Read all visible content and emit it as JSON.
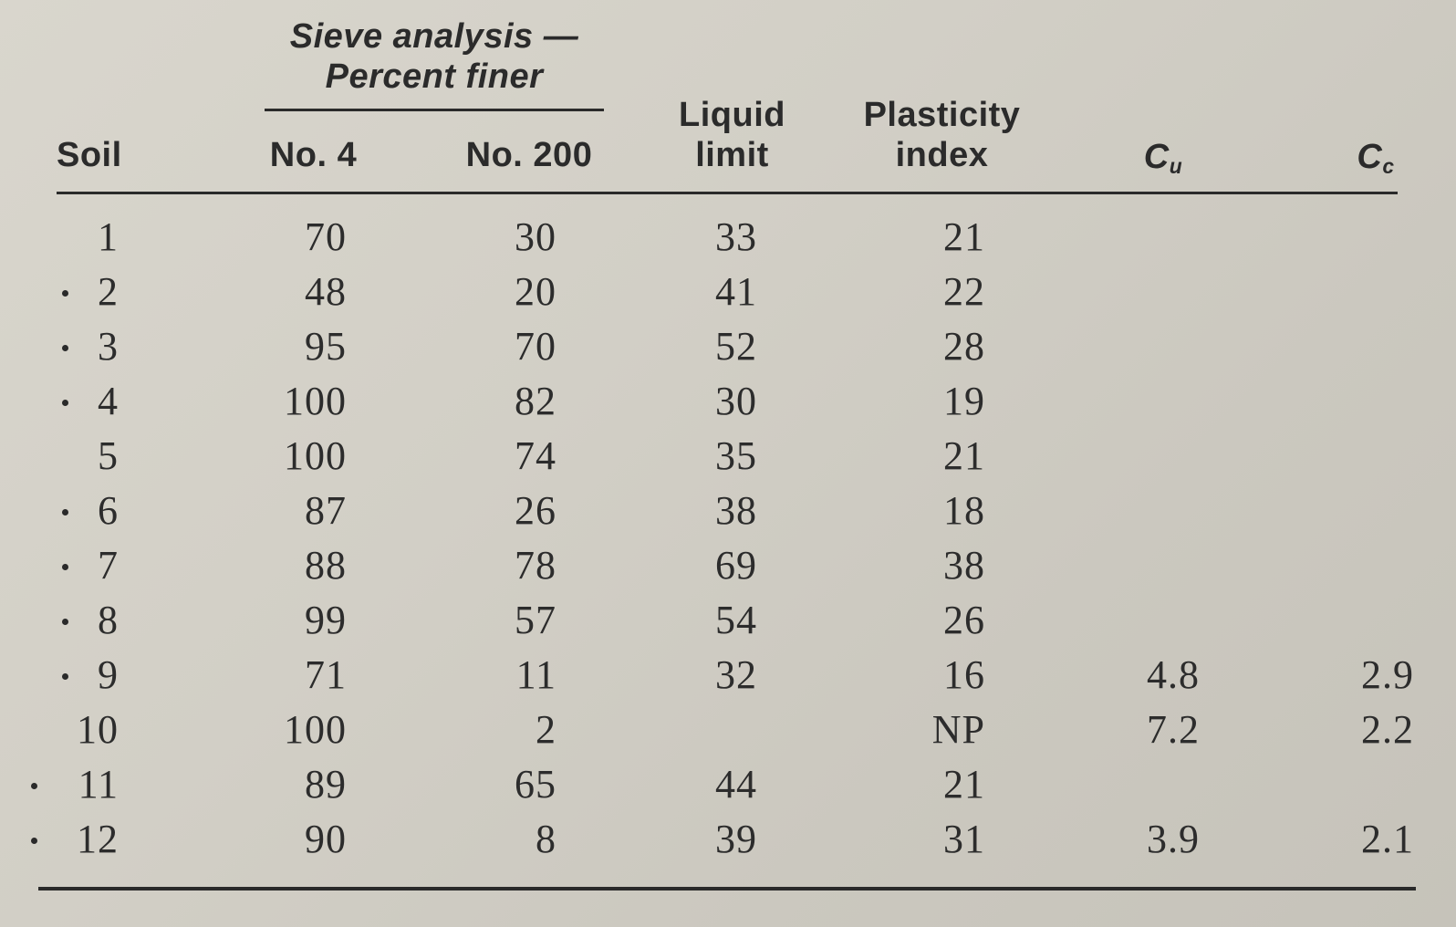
{
  "table": {
    "header": {
      "group_label_line1": "Sieve analysis —",
      "group_label_line2": "Percent finer",
      "soil": "Soil",
      "no4": "No. 4",
      "no200": "No. 200",
      "liquid_limit_line1": "Liquid",
      "liquid_limit_line2": "limit",
      "plasticity_index_line1": "Plasticity",
      "plasticity_index_line2": "index",
      "cu_main": "C",
      "cu_sub": "u",
      "cc_main": "C",
      "cc_sub": "c"
    },
    "columns": [
      "Soil",
      "No. 4",
      "No. 200",
      "Liquid limit",
      "Plasticity index",
      "Cu",
      "Cc"
    ],
    "rows": [
      {
        "soil": "1",
        "no4": "70",
        "no200": "30",
        "ll": "33",
        "pi": "21",
        "cu": "",
        "cc": "",
        "marked": false
      },
      {
        "soil": "2",
        "no4": "48",
        "no200": "20",
        "ll": "41",
        "pi": "22",
        "cu": "",
        "cc": "",
        "marked": true
      },
      {
        "soil": "3",
        "no4": "95",
        "no200": "70",
        "ll": "52",
        "pi": "28",
        "cu": "",
        "cc": "",
        "marked": true
      },
      {
        "soil": "4",
        "no4": "100",
        "no200": "82",
        "ll": "30",
        "pi": "19",
        "cu": "",
        "cc": "",
        "marked": true
      },
      {
        "soil": "5",
        "no4": "100",
        "no200": "74",
        "ll": "35",
        "pi": "21",
        "cu": "",
        "cc": "",
        "marked": false
      },
      {
        "soil": "6",
        "no4": "87",
        "no200": "26",
        "ll": "38",
        "pi": "18",
        "cu": "",
        "cc": "",
        "marked": true
      },
      {
        "soil": "7",
        "no4": "88",
        "no200": "78",
        "ll": "69",
        "pi": "38",
        "cu": "",
        "cc": "",
        "marked": true
      },
      {
        "soil": "8",
        "no4": "99",
        "no200": "57",
        "ll": "54",
        "pi": "26",
        "cu": "",
        "cc": "",
        "marked": true
      },
      {
        "soil": "9",
        "no4": "71",
        "no200": "11",
        "ll": "32",
        "pi": "16",
        "cu": "4.8",
        "cc": "2.9",
        "marked": true
      },
      {
        "soil": "10",
        "no4": "100",
        "no200": "2",
        "ll": "",
        "pi": "NP",
        "cu": "7.2",
        "cc": "2.2",
        "marked": false
      },
      {
        "soil": "11",
        "no4": "89",
        "no200": "65",
        "ll": "44",
        "pi": "21",
        "cu": "",
        "cc": "",
        "marked": true
      },
      {
        "soil": "12",
        "no4": "90",
        "no200": "8",
        "ll": "39",
        "pi": "31",
        "cu": "3.9",
        "cc": "2.1",
        "marked": true
      }
    ]
  }
}
